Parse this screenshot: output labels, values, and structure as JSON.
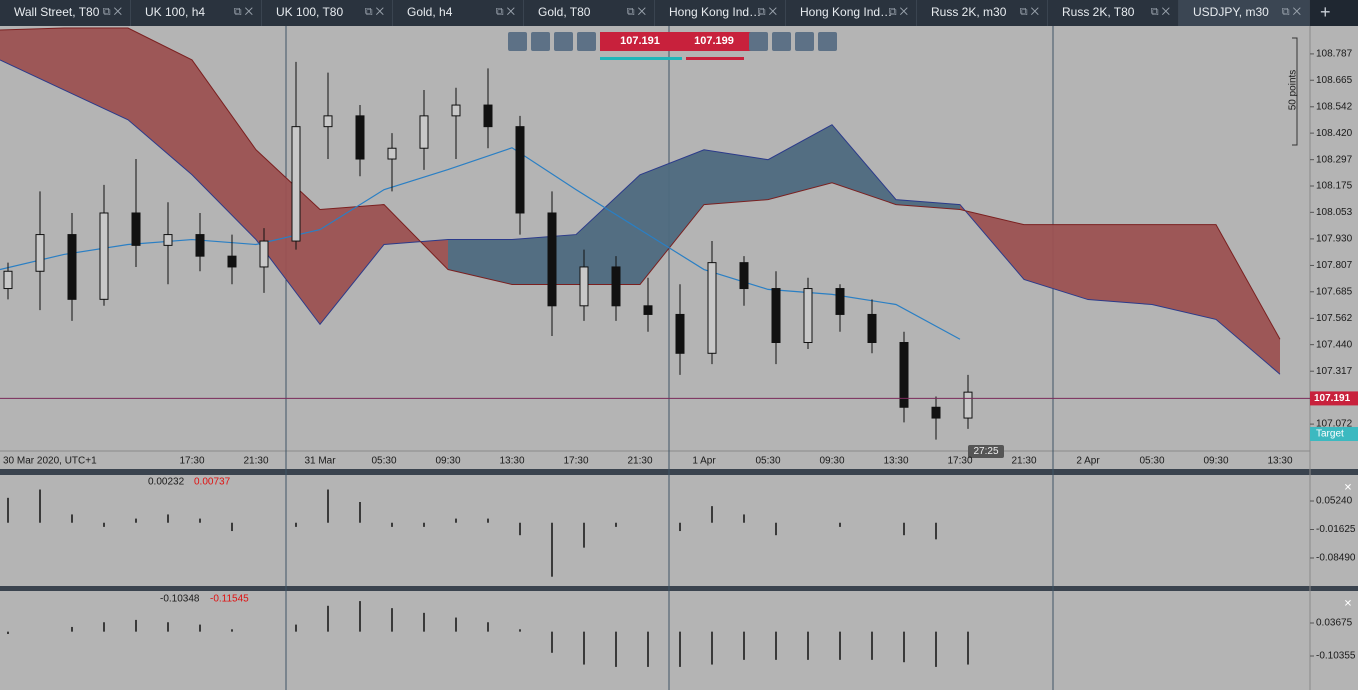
{
  "tabs": [
    "Wall Street, T80",
    "UK 100, h4",
    "UK 100, T80",
    "Gold, h4",
    "Gold, T80",
    "Hong Kong Ind…",
    "Hong Kong Ind…",
    "Russ 2K, m30",
    "Russ 2K, T80",
    "USDJPY, m30"
  ],
  "toolbar": {
    "sell": "107.191",
    "buy": "107.199"
  },
  "chart": {
    "type": "candlestick",
    "ylim": [
      106.952,
      108.907
    ],
    "yticks": [
      108.787,
      108.665,
      108.542,
      {
        "value": 108.42,
        "label": "108.420"
      },
      108.297,
      108.175,
      108.053,
      {
        "value": 107.93,
        "label": "107.930"
      },
      107.807,
      107.685,
      107.562,
      {
        "value": 107.44,
        "label": "107.440"
      },
      107.317,
      107.072
    ],
    "x_labels": [
      "30 Mar 2020, UTC+1",
      "17:30",
      "21:30",
      "31 Mar",
      "05:30",
      "09:30",
      "13:30",
      "17:30",
      "21:30",
      "1 Apr",
      "05:30",
      "09:30",
      "13:30",
      "17:30",
      "21:30",
      "2 Apr",
      "05:30",
      "09:30",
      "13:30"
    ],
    "open": [
      107.7,
      107.78,
      107.95,
      107.65,
      108.05,
      107.9,
      107.95,
      107.85,
      107.8,
      107.92,
      108.45,
      108.5,
      108.3,
      108.35,
      108.5,
      108.55,
      108.45,
      108.05,
      107.62,
      107.8,
      107.62,
      107.58,
      107.4,
      107.82,
      107.7,
      107.45,
      107.7,
      107.58,
      107.45,
      107.15,
      107.1
    ],
    "high": [
      107.82,
      108.15,
      108.05,
      108.18,
      108.3,
      108.1,
      108.05,
      107.95,
      107.98,
      108.75,
      108.7,
      108.55,
      108.42,
      108.62,
      108.63,
      108.72,
      108.5,
      108.15,
      107.88,
      107.85,
      107.75,
      107.72,
      107.92,
      107.85,
      107.78,
      107.75,
      107.72,
      107.65,
      107.5,
      107.2,
      107.3
    ],
    "low": [
      107.65,
      107.6,
      107.55,
      107.62,
      107.8,
      107.72,
      107.78,
      107.72,
      107.68,
      107.88,
      108.3,
      108.22,
      108.15,
      108.25,
      108.3,
      108.35,
      107.95,
      107.48,
      107.55,
      107.55,
      107.5,
      107.3,
      107.35,
      107.62,
      107.35,
      107.42,
      107.5,
      107.4,
      107.08,
      107.0,
      107.05
    ],
    "close": [
      107.78,
      107.95,
      107.65,
      108.05,
      107.9,
      107.95,
      107.85,
      107.8,
      107.92,
      108.45,
      108.5,
      108.3,
      108.35,
      108.5,
      108.55,
      108.45,
      108.05,
      107.62,
      107.8,
      107.62,
      107.58,
      107.4,
      107.82,
      107.7,
      107.45,
      107.7,
      107.58,
      107.45,
      107.15,
      107.1,
      107.22
    ],
    "span_a": [
      108.759,
      108.62,
      108.482,
      108.227,
      107.927,
      107.534,
      107.904,
      107.927,
      107.927,
      107.95,
      108.227,
      108.343,
      108.297,
      108.459,
      108.112,
      108.089,
      107.742,
      107.649,
      107.626,
      107.557,
      107.303
    ],
    "span_b": [
      108.898,
      108.907,
      108.907,
      108.759,
      108.343,
      108.066,
      108.089,
      107.788,
      107.719,
      107.719,
      107.719,
      108.089,
      108.112,
      108.19,
      108.089,
      108.066,
      107.996,
      107.996,
      107.996,
      107.996,
      107.465
    ],
    "moving_average": [
      107.788,
      107.858,
      107.904,
      107.927,
      107.904,
      107.973,
      108.158,
      108.251,
      108.352,
      108.158,
      107.973,
      107.788,
      107.696,
      107.673,
      107.626,
      107.465
    ],
    "current_price": 107.191,
    "range_label": "50 points",
    "target_label": "Target",
    "timer": "27:25"
  },
  "panels": [
    {
      "ylim": [
        -0.1524,
        0.1126
      ],
      "yticks": [
        {
          "value": 0.0524,
          "label": "0.05240"
        },
        -0.01625,
        {
          "value": -0.0849,
          "label": "-0.08490"
        }
      ],
      "label_a": "0.00232",
      "label_b": "0.00737",
      "values": [
        0.06,
        0.08,
        0.02,
        -0.01,
        0.01,
        0.02,
        0.01,
        -0.02,
        0.0,
        -0.01,
        0.08,
        0.05,
        -0.01,
        -0.01,
        0.01,
        0.01,
        -0.03,
        -0.13,
        -0.06,
        -0.01,
        0.0,
        -0.02,
        0.04,
        0.02,
        -0.03,
        0.0,
        -0.01,
        0.0,
        -0.03,
        -0.04,
        0.0
      ]
    },
    {
      "ylim": [
        -0.2355,
        0.1687
      ],
      "yticks": [
        0.03675,
        -0.10355
      ],
      "label_a": "-0.10348",
      "label_b": "-0.11545",
      "values": [
        -0.01,
        0.0,
        0.02,
        0.04,
        0.05,
        0.04,
        0.03,
        0.01,
        0.0,
        0.03,
        0.11,
        0.13,
        0.1,
        0.08,
        0.06,
        0.04,
        0.01,
        -0.09,
        -0.14,
        -0.15,
        -0.15,
        -0.15,
        -0.14,
        -0.12,
        -0.12,
        -0.12,
        -0.12,
        -0.12,
        -0.13,
        -0.15,
        -0.14
      ]
    }
  ]
}
